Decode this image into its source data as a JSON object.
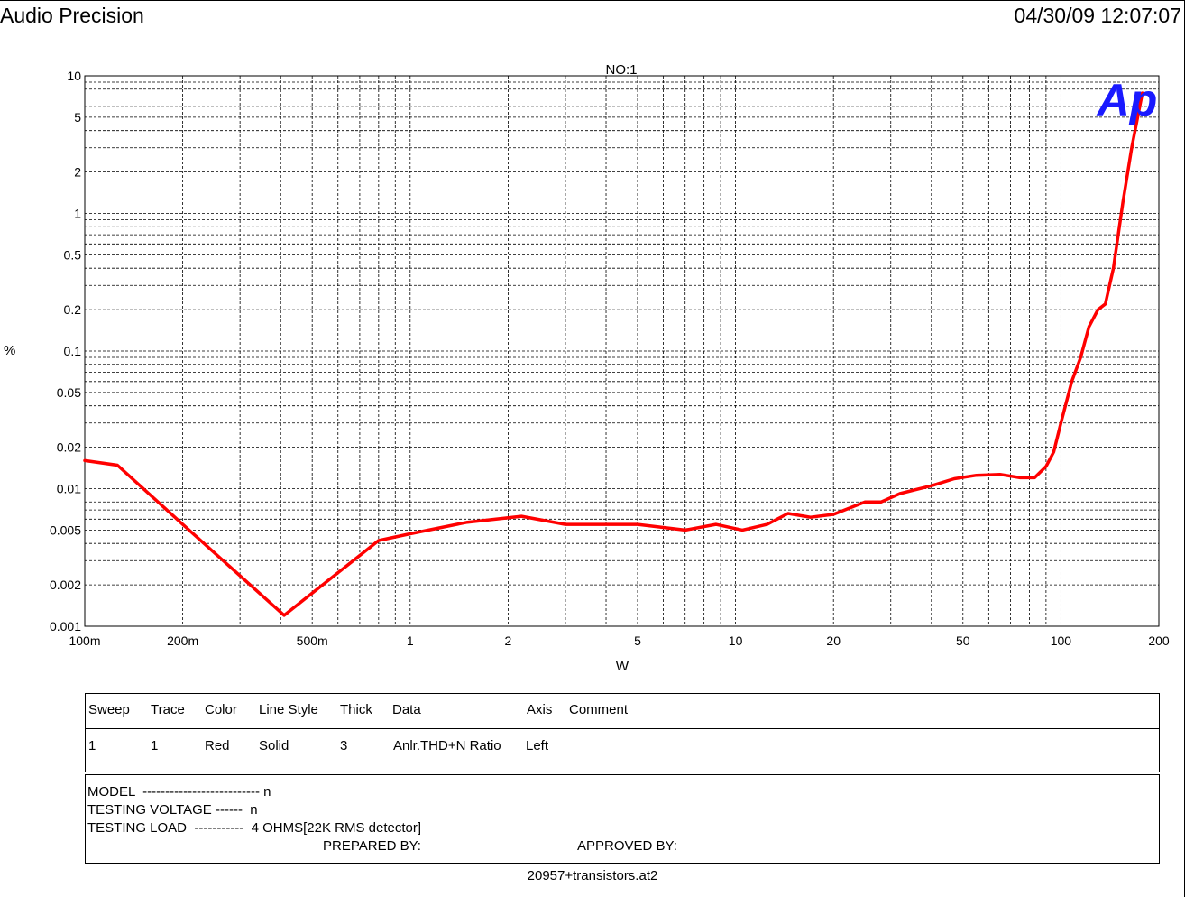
{
  "header": {
    "app_title": "Audio Precision",
    "timestamp": "04/30/09 12:07:07"
  },
  "chart_data": {
    "type": "line",
    "title": "NO:1",
    "xlabel": "W",
    "ylabel": "%",
    "x_scale": "log",
    "y_scale": "log",
    "xlim": [
      0.1,
      200
    ],
    "ylim": [
      0.001,
      10
    ],
    "grid": true,
    "x_ticks": [
      {
        "v": 0.1,
        "label": "100m"
      },
      {
        "v": 0.2,
        "label": "200m"
      },
      {
        "v": 0.5,
        "label": "500m"
      },
      {
        "v": 1,
        "label": "1"
      },
      {
        "v": 2,
        "label": "2"
      },
      {
        "v": 5,
        "label": "5"
      },
      {
        "v": 10,
        "label": "10"
      },
      {
        "v": 20,
        "label": "20"
      },
      {
        "v": 50,
        "label": "50"
      },
      {
        "v": 100,
        "label": "100"
      },
      {
        "v": 200,
        "label": "200"
      }
    ],
    "y_ticks": [
      {
        "v": 10,
        "label": "10"
      },
      {
        "v": 5,
        "label": "5"
      },
      {
        "v": 2,
        "label": "2"
      },
      {
        "v": 1,
        "label": "1"
      },
      {
        "v": 0.5,
        "label": "0.5"
      },
      {
        "v": 0.2,
        "label": "0.2"
      },
      {
        "v": 0.1,
        "label": "0.1"
      },
      {
        "v": 0.05,
        "label": "0.05"
      },
      {
        "v": 0.02,
        "label": "0.02"
      },
      {
        "v": 0.01,
        "label": "0.01"
      },
      {
        "v": 0.005,
        "label": "0.005"
      },
      {
        "v": 0.002,
        "label": "0.002"
      },
      {
        "v": 0.001,
        "label": "0.001"
      }
    ],
    "series": [
      {
        "color": "#ff0000",
        "points": [
          [
            0.1,
            0.016
          ],
          [
            0.126,
            0.0148
          ],
          [
            0.2,
            0.0055
          ],
          [
            0.41,
            0.0012
          ],
          [
            0.8,
            0.0042
          ],
          [
            1.0,
            0.0047
          ],
          [
            1.5,
            0.0057
          ],
          [
            2.2,
            0.0063
          ],
          [
            3.0,
            0.0055
          ],
          [
            5.0,
            0.0055
          ],
          [
            7.0,
            0.005
          ],
          [
            8.7,
            0.0055
          ],
          [
            10.5,
            0.005
          ],
          [
            12.5,
            0.0055
          ],
          [
            14.5,
            0.0066
          ],
          [
            17.0,
            0.0062
          ],
          [
            20.0,
            0.0065
          ],
          [
            25.0,
            0.008
          ],
          [
            28.0,
            0.008
          ],
          [
            32.0,
            0.0092
          ],
          [
            40.0,
            0.0105
          ],
          [
            47.0,
            0.0118
          ],
          [
            55.0,
            0.0125
          ],
          [
            65.0,
            0.0127
          ],
          [
            75.0,
            0.012
          ],
          [
            83.0,
            0.012
          ],
          [
            90.0,
            0.0145
          ],
          [
            95.0,
            0.0185
          ],
          [
            100.0,
            0.03
          ],
          [
            108.0,
            0.06
          ],
          [
            115.0,
            0.09
          ],
          [
            122.0,
            0.15
          ],
          [
            130.0,
            0.2
          ],
          [
            137.0,
            0.22
          ],
          [
            145.0,
            0.4
          ],
          [
            155.0,
            1.2
          ],
          [
            165.0,
            3.0
          ],
          [
            178.0,
            7.5
          ]
        ]
      }
    ]
  },
  "logo": {
    "text": "Ap",
    "color": "#1a1aff"
  },
  "legend": {
    "headers": {
      "sweep": "Sweep",
      "trace": "Trace",
      "color": "Color",
      "line_style": "Line Style",
      "thick": "Thick",
      "data": "Data",
      "axis": "Axis",
      "comment": "Comment"
    },
    "row": {
      "sweep": "1",
      "trace": "1",
      "color": "Red",
      "line_style": "Solid",
      "thick": "3",
      "data": "Anlr.THD+N Ratio",
      "axis": "Left",
      "comment": ""
    }
  },
  "info": {
    "model": "MODEL  -------------------------- n",
    "testing_voltage": "TESTING VOLTAGE ------  n",
    "testing_load": "TESTING LOAD  -----------  4 OHMS[22K RMS detector]",
    "prepared_by": "PREPARED BY:",
    "approved_by": "APPROVED BY:"
  },
  "footer": {
    "filename": "20957+transistors.at2"
  }
}
